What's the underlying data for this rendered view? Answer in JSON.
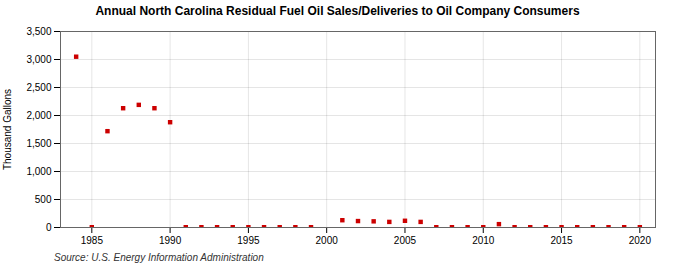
{
  "chart_data": {
    "type": "scatter",
    "title": "Annual North Carolina Residual Fuel Oil Sales/Deliveries to Oil Company Consumers",
    "ylabel": "Thousand Gallons",
    "source": "Source: U.S. Energy Information Administration",
    "x": [
      1984,
      1985,
      1986,
      1987,
      1988,
      1989,
      1990,
      1991,
      1992,
      1993,
      1994,
      1995,
      1996,
      1997,
      1998,
      1999,
      2001,
      2002,
      2003,
      2004,
      2005,
      2006,
      2007,
      2008,
      2009,
      2010,
      2011,
      2012,
      2013,
      2014,
      2015,
      2016,
      2017,
      2018,
      2019,
      2020
    ],
    "values": [
      3050,
      5,
      1720,
      2130,
      2190,
      2130,
      1880,
      5,
      5,
      5,
      5,
      5,
      5,
      5,
      5,
      5,
      130,
      115,
      110,
      100,
      120,
      100,
      5,
      5,
      5,
      5,
      60,
      5,
      5,
      5,
      5,
      5,
      5,
      5,
      5,
      5
    ],
    "color": "#cc0000",
    "marker": "square",
    "xlim": [
      1983,
      2021
    ],
    "ylim": [
      0,
      3500
    ],
    "xticks": [
      1985,
      1990,
      1995,
      2000,
      2005,
      2010,
      2015,
      2020
    ],
    "yticks": [
      0,
      500,
      {
        "value": 1000,
        "label": "1,000"
      },
      {
        "value": 1500,
        "label": "1,500"
      },
      {
        "value": 2000,
        "label": "2,000"
      },
      {
        "value": 2500,
        "label": "2,500"
      },
      {
        "value": 3000,
        "label": "3,000"
      },
      {
        "value": 3500,
        "label": "3,500"
      }
    ],
    "grid": true
  }
}
